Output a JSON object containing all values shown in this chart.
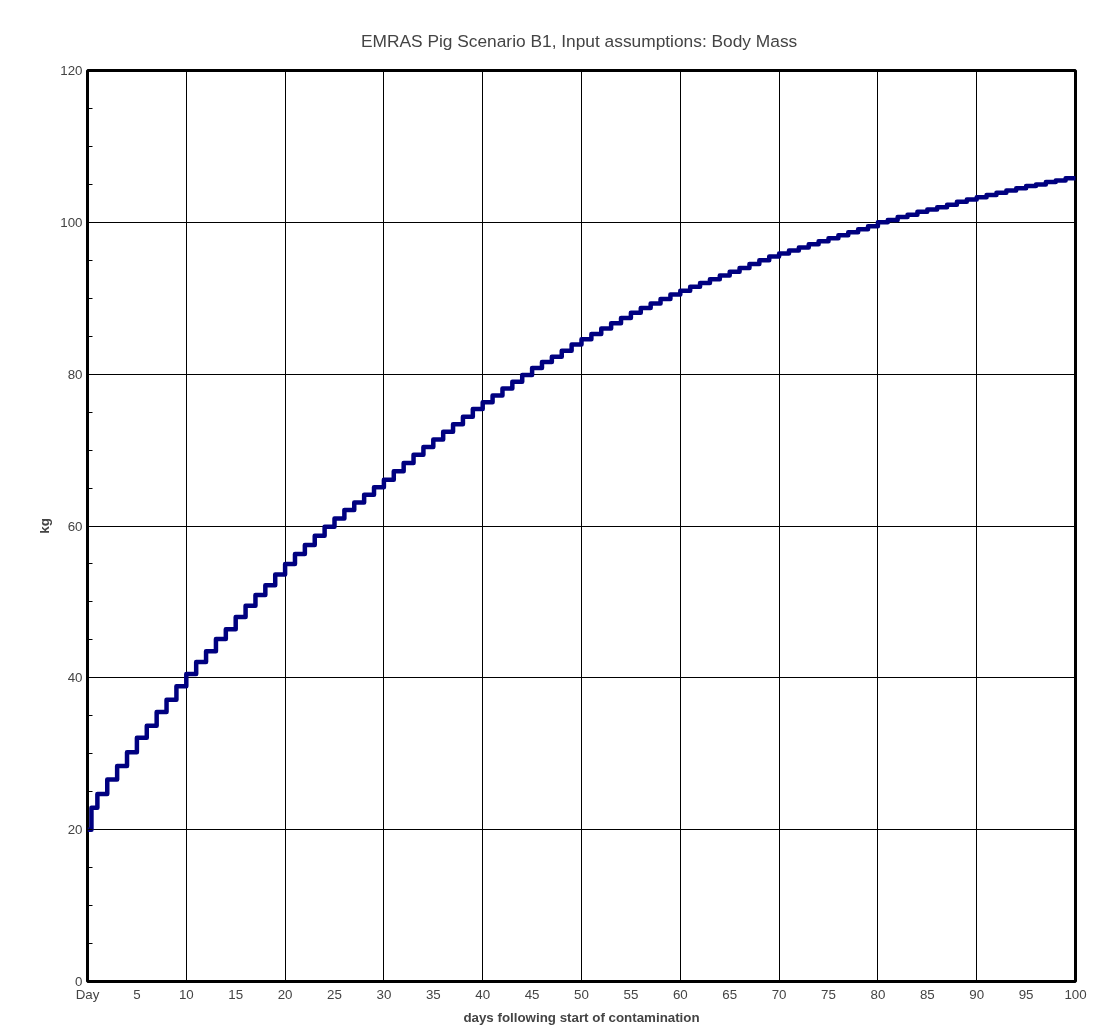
{
  "chart_data": {
    "type": "step",
    "title": "EMRAS Pig Scenario B1, Input assumptions:  Body Mass",
    "xlabel": "days following start of contamination",
    "ylabel": "kg",
    "x": [
      0,
      0.4,
      1,
      2,
      3,
      4,
      5,
      6,
      7,
      8,
      9,
      10,
      11,
      12,
      13,
      14,
      15,
      16,
      17,
      18,
      19,
      20,
      21,
      22,
      23,
      24,
      25,
      26,
      27,
      28,
      29,
      30,
      31,
      32,
      33,
      34,
      35,
      36,
      37,
      38,
      39,
      40,
      41,
      42,
      43,
      44,
      45,
      46,
      47,
      48,
      49,
      50,
      51,
      52,
      53,
      54,
      55,
      56,
      57,
      58,
      59,
      60,
      61,
      62,
      63,
      64,
      65,
      66,
      67,
      68,
      69,
      70,
      71,
      72,
      73,
      74,
      75,
      76,
      77,
      78,
      79,
      80,
      81,
      82,
      83,
      84,
      85,
      86,
      87,
      88,
      89,
      90,
      91,
      92,
      93,
      94,
      95,
      96,
      97,
      98,
      99,
      100
    ],
    "series": [
      {
        "color": "#000080",
        "values": [
          20,
          22.9,
          24.7,
          26.6,
          28.4,
          30.2,
          32.1,
          33.7,
          35.5,
          37.1,
          38.9,
          40.5,
          42.1,
          43.5,
          45.1,
          46.4,
          48.0,
          49.5,
          50.9,
          52.2,
          53.6,
          55.0,
          56.3,
          57.5,
          58.7,
          59.9,
          61.0,
          62.1,
          63.1,
          64.1,
          65.1,
          66.1,
          67.2,
          68.3,
          69.4,
          70.4,
          71.4,
          72.4,
          73.4,
          74.4,
          75.4,
          76.3,
          77.2,
          78.1,
          79.0,
          79.9,
          80.8,
          81.6,
          82.3,
          83.1,
          83.9,
          84.6,
          85.3,
          86.0,
          86.7,
          87.4,
          88.1,
          88.7,
          89.3,
          89.9,
          90.5,
          91.0,
          91.5,
          92.0,
          92.5,
          93.0,
          93.5,
          94.0,
          94.5,
          95.0,
          95.5,
          95.9,
          96.3,
          96.7,
          97.1,
          97.5,
          97.9,
          98.3,
          98.7,
          99.1,
          99.5,
          100.0,
          100.3,
          100.7,
          101.0,
          101.4,
          101.7,
          102.0,
          102.3,
          102.7,
          103.0,
          103.3,
          103.6,
          103.9,
          104.2,
          104.5,
          104.8,
          105.0,
          105.3,
          105.5,
          105.8,
          106.0
        ]
      }
    ],
    "xlim": [
      0,
      100
    ],
    "xticks": [
      {
        "value": 0,
        "label": "Day"
      },
      5,
      10,
      15,
      20,
      25,
      30,
      35,
      40,
      45,
      50,
      55,
      60,
      65,
      70,
      75,
      80,
      85,
      90,
      95,
      100
    ],
    "ylim": [
      0,
      120
    ],
    "yticks": [
      0,
      20,
      40,
      60,
      80,
      100,
      120
    ],
    "grid": true,
    "line_style": "solid"
  }
}
